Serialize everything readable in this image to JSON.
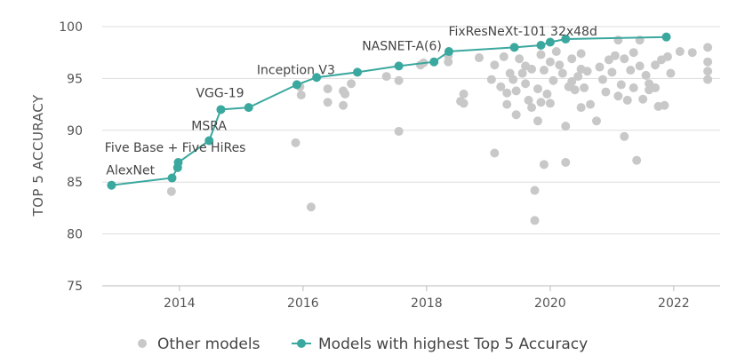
{
  "chart_data": {
    "type": "scatter",
    "title": "",
    "xlabel": "",
    "ylabel": "TOP 5 ACCURACY",
    "xlim": [
      2012.75,
      2022.75
    ],
    "ylim": [
      75,
      100
    ],
    "x_ticks": [
      2014,
      2016,
      2018,
      2020,
      2022
    ],
    "y_ticks": [
      75,
      80,
      85,
      90,
      95,
      100
    ],
    "grid": true,
    "legend_position": "bottom",
    "series": [
      {
        "name": "Other models",
        "color": "#c8c8c8",
        "marker": "circle",
        "points": [
          [
            2013.87,
            84.1
          ],
          [
            2015.88,
            88.8
          ],
          [
            2015.95,
            94.2
          ],
          [
            2015.97,
            93.4
          ],
          [
            2016.13,
            82.6
          ],
          [
            2016.4,
            94.0
          ],
          [
            2016.4,
            92.7
          ],
          [
            2016.65,
            93.8
          ],
          [
            2016.65,
            92.4
          ],
          [
            2016.68,
            93.5
          ],
          [
            2016.78,
            94.5
          ],
          [
            2017.35,
            95.2
          ],
          [
            2017.55,
            94.8
          ],
          [
            2017.55,
            89.9
          ],
          [
            2017.9,
            96.3
          ],
          [
            2017.95,
            96.5
          ],
          [
            2018.35,
            96.6
          ],
          [
            2018.35,
            97.2
          ],
          [
            2018.55,
            92.8
          ],
          [
            2018.6,
            93.5
          ],
          [
            2018.6,
            92.6
          ],
          [
            2018.85,
            97.0
          ],
          [
            2019.05,
            94.9
          ],
          [
            2019.1,
            96.3
          ],
          [
            2019.1,
            87.8
          ],
          [
            2019.2,
            94.2
          ],
          [
            2019.25,
            97.1
          ],
          [
            2019.3,
            93.6
          ],
          [
            2019.35,
            95.5
          ],
          [
            2019.4,
            94.9
          ],
          [
            2019.45,
            93.8
          ],
          [
            2019.5,
            96.9
          ],
          [
            2019.55,
            95.5
          ],
          [
            2019.6,
            94.5
          ],
          [
            2019.65,
            92.9
          ],
          [
            2019.7,
            95.9
          ],
          [
            2019.75,
            84.2
          ],
          [
            2019.75,
            81.3
          ],
          [
            2019.8,
            90.9
          ],
          [
            2019.85,
            97.3
          ],
          [
            2019.9,
            95.8
          ],
          [
            2019.95,
            93.5
          ],
          [
            2019.9,
            86.7
          ],
          [
            2020.0,
            96.6
          ],
          [
            2020.05,
            94.8
          ],
          [
            2020.1,
            97.6
          ],
          [
            2020.2,
            95.5
          ],
          [
            2020.25,
            90.4
          ],
          [
            2020.25,
            86.9
          ],
          [
            2020.3,
            94.2
          ],
          [
            2020.35,
            96.9
          ],
          [
            2020.4,
            93.9
          ],
          [
            2020.45,
            95.2
          ],
          [
            2020.5,
            97.4
          ],
          [
            2020.5,
            92.2
          ],
          [
            2020.55,
            94.1
          ],
          [
            2020.6,
            95.7
          ],
          [
            2020.75,
            90.9
          ],
          [
            2020.8,
            96.1
          ],
          [
            2020.85,
            94.9
          ],
          [
            2020.9,
            93.7
          ],
          [
            2020.95,
            96.8
          ],
          [
            2021.0,
            95.6
          ],
          [
            2021.05,
            97.2
          ],
          [
            2021.1,
            98.7
          ],
          [
            2021.15,
            94.4
          ],
          [
            2021.2,
            96.9
          ],
          [
            2021.2,
            89.4
          ],
          [
            2021.25,
            92.9
          ],
          [
            2021.3,
            95.8
          ],
          [
            2021.35,
            94.1
          ],
          [
            2021.4,
            87.1
          ],
          [
            2021.45,
            98.7
          ],
          [
            2021.45,
            96.2
          ],
          [
            2021.5,
            93.0
          ],
          [
            2021.55,
            95.3
          ],
          [
            2021.6,
            94.5
          ],
          [
            2021.7,
            94.1
          ],
          [
            2021.75,
            92.3
          ],
          [
            2021.8,
            96.8
          ],
          [
            2021.85,
            92.4
          ],
          [
            2021.9,
            97.1
          ],
          [
            2021.95,
            95.5
          ],
          [
            2022.1,
            97.6
          ],
          [
            2022.3,
            97.5
          ],
          [
            2022.55,
            98.0
          ],
          [
            2022.55,
            96.6
          ],
          [
            2022.55,
            95.7
          ],
          [
            2022.55,
            94.9
          ],
          [
            2019.3,
            92.5
          ],
          [
            2019.45,
            91.5
          ],
          [
            2019.6,
            96.2
          ],
          [
            2019.7,
            92.2
          ],
          [
            2019.8,
            94.0
          ],
          [
            2019.85,
            92.7
          ],
          [
            2020.0,
            92.6
          ],
          [
            2020.15,
            96.3
          ],
          [
            2020.35,
            94.7
          ],
          [
            2020.5,
            95.9
          ],
          [
            2020.65,
            92.5
          ],
          [
            2021.1,
            93.3
          ],
          [
            2021.35,
            97.5
          ],
          [
            2021.6,
            93.9
          ],
          [
            2021.7,
            96.3
          ]
        ]
      },
      {
        "name": "Models with highest Top 5 Accuracy",
        "color": "#3aa89e",
        "marker": "circle-line",
        "points": [
          [
            2012.9,
            84.7
          ],
          [
            2013.88,
            85.4
          ],
          [
            2013.97,
            86.4
          ],
          [
            2013.98,
            86.9
          ],
          [
            2014.48,
            89.0
          ],
          [
            2014.67,
            92.0
          ],
          [
            2015.12,
            92.2
          ],
          [
            2015.9,
            94.4
          ],
          [
            2016.22,
            95.1
          ],
          [
            2016.88,
            95.6
          ],
          [
            2017.55,
            96.2
          ],
          [
            2018.12,
            96.6
          ],
          [
            2018.36,
            97.6
          ],
          [
            2019.42,
            98.0
          ],
          [
            2019.85,
            98.2
          ],
          [
            2020.0,
            98.5
          ],
          [
            2020.25,
            98.8
          ],
          [
            2021.88,
            99.0
          ]
        ]
      }
    ],
    "annotations": [
      {
        "text": "AlexNet",
        "x": 2012.9,
        "y": 84.7
      },
      {
        "text": "Five Base + Five HiRes",
        "x": 2013.97,
        "y": 86.4
      },
      {
        "text": "MSRA",
        "x": 2014.48,
        "y": 89.0
      },
      {
        "text": "VGG-19",
        "x": 2014.67,
        "y": 92.0
      },
      {
        "text": "Inception V3",
        "x": 2015.9,
        "y": 94.4
      },
      {
        "text": "NASNET-A(6)",
        "x": 2018.12,
        "y": 96.6
      },
      {
        "text": "FixResNeXt-101 32x48d",
        "x": 2019.85,
        "y": 98.2
      }
    ]
  },
  "legend": {
    "other_label": "Other models",
    "best_label": "Models with highest Top 5 Accuracy"
  }
}
